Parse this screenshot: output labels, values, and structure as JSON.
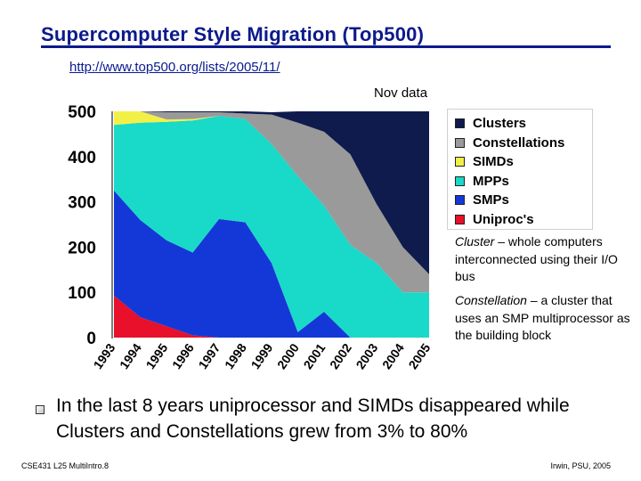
{
  "slide": {
    "title": "Supercomputer Style Migration (Top500)",
    "url": "http://www.top500.org/lists/2005/11/",
    "bullet": "In the last 8 years uniprocessor and SIMDs disappeared while Clusters and Constellations grew from 3% to 80%",
    "footer_left": "CSE431 L25 MultiIntro.8",
    "footer_right": "Irwin, PSU, 2005"
  },
  "notes": [
    {
      "term": "Cluster",
      "text": " – whole computers interconnected using their I/O bus"
    },
    {
      "term": "Constellation",
      "text": " – a cluster that uses an SMP multiprocessor as the building block"
    }
  ],
  "chart_data": {
    "type": "area",
    "stacked": true,
    "subtitle": "Nov data",
    "x": [
      "1993",
      "1994",
      "1995",
      "1996",
      "1997",
      "1998",
      "1999",
      "2000",
      "2001",
      "2002",
      "2003",
      "2004",
      "2005"
    ],
    "ylim": [
      0,
      500
    ],
    "yticks": [
      0,
      100,
      200,
      300,
      400,
      500
    ],
    "series": [
      {
        "name": "Uniproc's",
        "color": "#e8102a",
        "values": [
          93,
          45,
          25,
          5,
          0,
          0,
          0,
          0,
          0,
          0,
          0,
          0,
          0
        ]
      },
      {
        "name": "SMPs",
        "color": "#1438d8",
        "values": [
          232,
          215,
          190,
          183,
          262,
          255,
          165,
          12,
          57,
          0,
          0,
          0,
          0
        ]
      },
      {
        "name": "MPPs",
        "color": "#19d9c8",
        "values": [
          145,
          215,
          262,
          292,
          228,
          228,
          263,
          345,
          235,
          205,
          165,
          100,
          100
        ]
      },
      {
        "name": "SIMDs",
        "color": "#f2f047",
        "values": [
          30,
          25,
          5,
          3,
          0,
          0,
          0,
          0,
          0,
          0,
          0,
          0,
          0
        ]
      },
      {
        "name": "Constellations",
        "color": "#9a9a9a",
        "values": [
          0,
          0,
          16,
          15,
          8,
          12,
          65,
          118,
          163,
          200,
          130,
          100,
          40
        ]
      },
      {
        "name": "Clusters",
        "color": "#0f1b4d",
        "values": [
          0,
          0,
          2,
          2,
          2,
          5,
          5,
          25,
          45,
          95,
          205,
          300,
          360
        ]
      }
    ],
    "legend_order": [
      "Clusters",
      "Constellations",
      "SIMDs",
      "MPPs",
      "SMPs",
      "Uniproc's"
    ],
    "legend_position": "right"
  }
}
